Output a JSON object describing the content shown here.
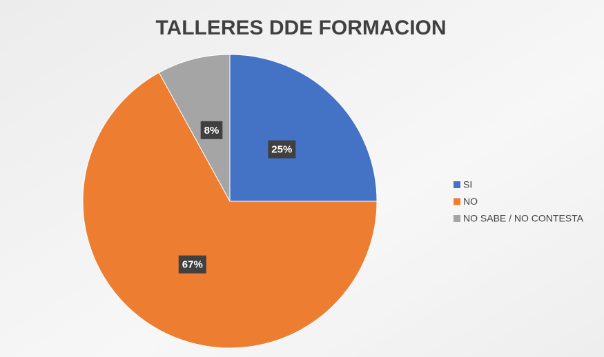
{
  "chart_data": {
    "type": "pie",
    "title": "TALLERES DDE FORMACION",
    "categories": [
      "SI",
      "NO",
      "NO SABE / NO CONTESTA"
    ],
    "values": [
      25,
      67,
      8
    ],
    "value_labels": [
      "25%",
      "67%",
      "8%"
    ],
    "colors": [
      "#4472c4",
      "#ed7d31",
      "#a5a5a5"
    ],
    "legend": "right"
  }
}
